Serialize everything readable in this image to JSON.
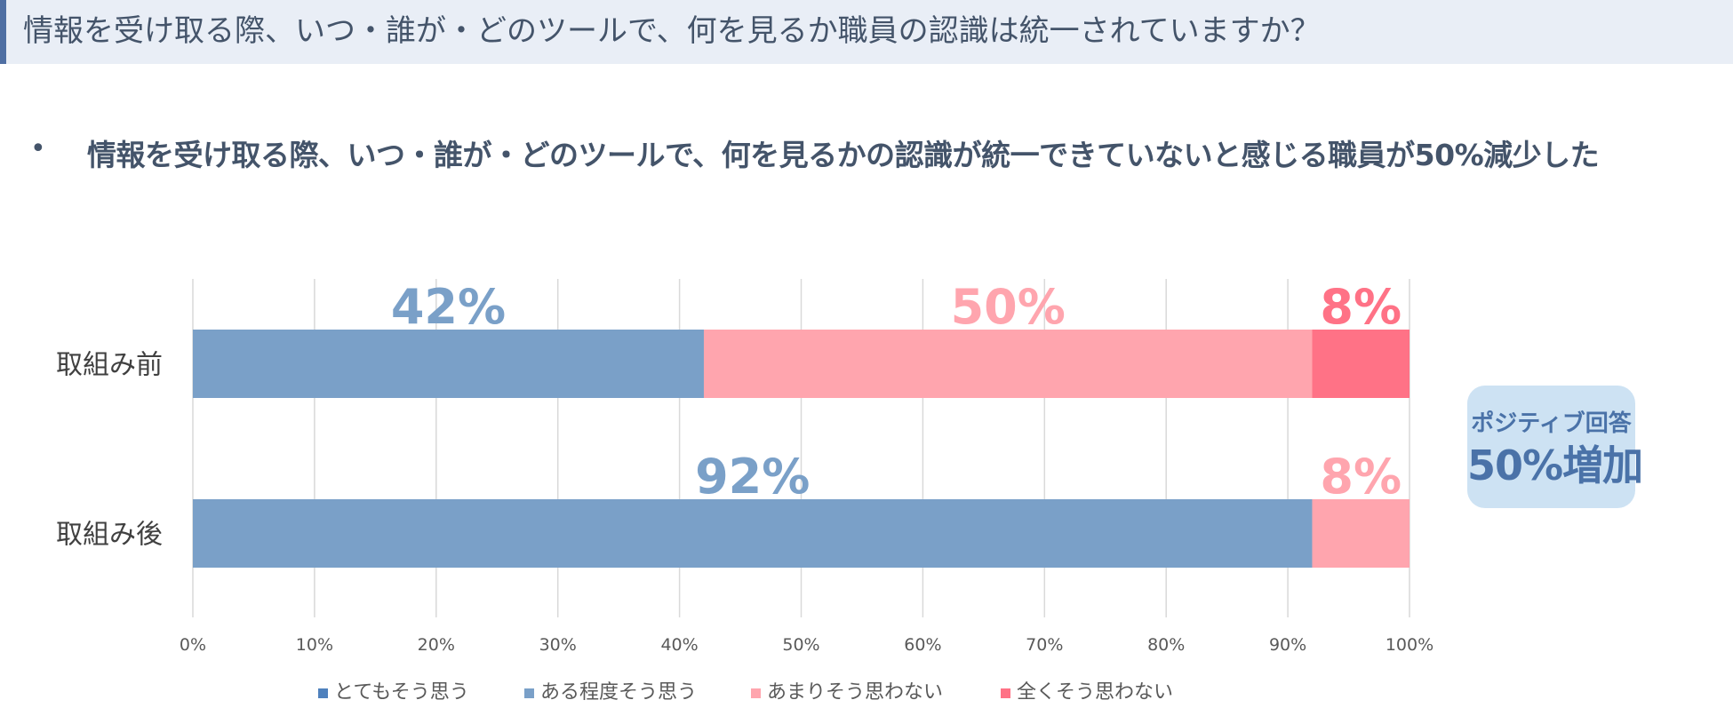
{
  "header": {
    "title": "情報を受け取る際、いつ・誰が・どのツールで、何を見るか職員の認識は統一されていますか？"
  },
  "summary": {
    "bullet": "•",
    "text": "情報を受け取る際、いつ・誰が・どのツールで、何を見るかの認識が統一できていないと感じる職員が50%減少した"
  },
  "badge": {
    "line1": "ポジティブ回答",
    "line2": "50%増加"
  },
  "chart_data": {
    "type": "bar",
    "orientation": "horizontal",
    "stacked": "percent",
    "categories": [
      "取組み前",
      "取組み後"
    ],
    "series": [
      {
        "name": "とてもそう思う",
        "color": "#4f81bd",
        "values": [
          0,
          0
        ]
      },
      {
        "name": "ある程度そう思う",
        "color": "#7aa0c8",
        "values": [
          42,
          92
        ]
      },
      {
        "name": "あまりそう思わない",
        "color": "#ffa5ae",
        "values": [
          50,
          8
        ]
      },
      {
        "name": "全くそう思わない",
        "color": "#ff7286",
        "values": [
          8,
          0
        ]
      }
    ],
    "data_labels": [
      {
        "category": "取組み前",
        "series": "ある程度そう思う",
        "text": "42%"
      },
      {
        "category": "取組み前",
        "series": "あまりそう思わない",
        "text": "50%"
      },
      {
        "category": "取組み前",
        "series": "全くそう思わない",
        "text": "8%"
      },
      {
        "category": "取組み後",
        "series": "ある程度そう思う",
        "text": "92%"
      },
      {
        "category": "取組み後",
        "series": "あまりそう思わない",
        "text": "8%"
      }
    ],
    "xlim": [
      0,
      100
    ],
    "xticks": [
      "0%",
      "10%",
      "20%",
      "30%",
      "40%",
      "50%",
      "60%",
      "70%",
      "80%",
      "90%",
      "100%"
    ],
    "grid": true,
    "legend": "bottom"
  }
}
